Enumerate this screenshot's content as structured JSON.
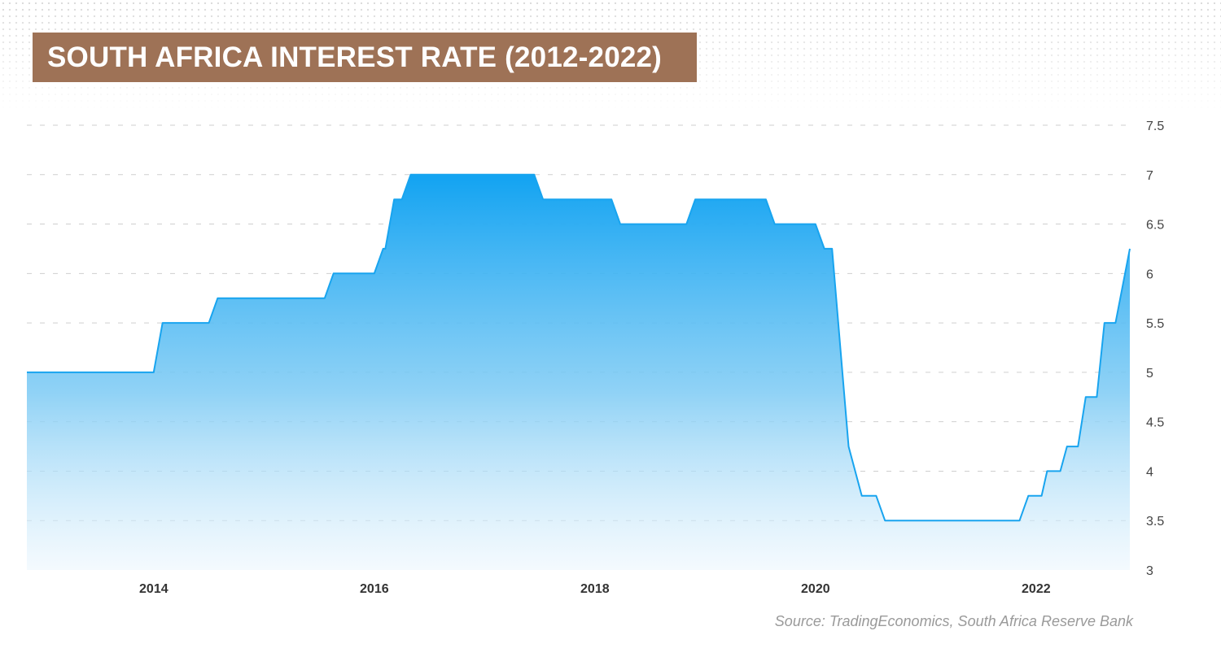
{
  "chart_data": {
    "type": "area",
    "title": "SOUTH AFRICA INTEREST RATE (2012-2022)",
    "xlabel": "",
    "ylabel": "",
    "xlim": [
      2012.85,
      2022.85
    ],
    "ylim": [
      3,
      7.5
    ],
    "y_ticks": [
      "7.5",
      "7",
      "6.5",
      "6",
      "5.5",
      "5",
      "4.5",
      "4",
      "3.5",
      "3"
    ],
    "x_ticks": [
      "2014",
      "2016",
      "2018",
      "2020",
      "2022"
    ],
    "series": [
      {
        "name": "Interest Rate",
        "color": "#18a4ef",
        "x": [
          2012.85,
          2014.0,
          2014.08,
          2014.5,
          2014.58,
          2015.55,
          2015.63,
          2016.0,
          2016.08,
          2016.1,
          2016.18,
          2016.25,
          2016.33,
          2017.45,
          2017.53,
          2018.15,
          2018.23,
          2018.83,
          2018.91,
          2019.55,
          2019.63,
          2020.0,
          2020.08,
          2020.15,
          2020.3,
          2020.42,
          2020.55,
          2020.63,
          2021.85,
          2021.93,
          2022.05,
          2022.1,
          2022.22,
          2022.28,
          2022.38,
          2022.45,
          2022.55,
          2022.62,
          2022.72,
          2022.85
        ],
        "values": [
          5.0,
          5.0,
          5.5,
          5.5,
          5.75,
          5.75,
          6.0,
          6.0,
          6.25,
          6.25,
          6.75,
          6.75,
          7.0,
          7.0,
          6.75,
          6.75,
          6.5,
          6.5,
          6.75,
          6.75,
          6.5,
          6.5,
          6.25,
          6.25,
          4.25,
          3.75,
          3.75,
          3.5,
          3.5,
          3.75,
          3.75,
          4.0,
          4.0,
          4.25,
          4.25,
          4.75,
          4.75,
          5.5,
          5.5,
          6.25
        ]
      }
    ],
    "grid": true,
    "legend": "none",
    "source": "Source: TradingEconomics, South Africa Reserve Bank"
  }
}
